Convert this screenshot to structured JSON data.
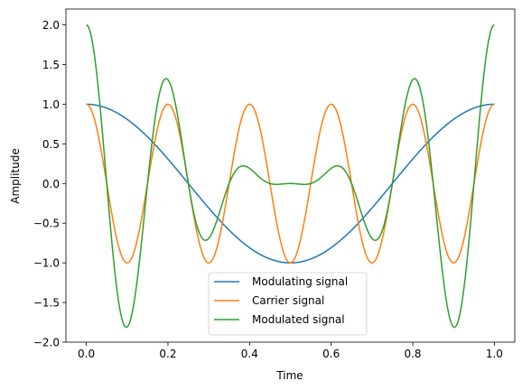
{
  "chart_data": {
    "type": "line",
    "title": "",
    "xlabel": "Time",
    "ylabel": "Amplitude",
    "xlim": [
      -0.05,
      1.05
    ],
    "ylim": [
      -2.0,
      2.2
    ],
    "x_ticks": [
      0.0,
      0.2,
      0.4,
      0.6,
      0.8,
      1.0
    ],
    "x_tick_labels": [
      "0.0",
      "0.2",
      "0.4",
      "0.6",
      "0.8",
      "1.0"
    ],
    "y_ticks": [
      -2.0,
      -1.5,
      -1.0,
      -0.5,
      0.0,
      0.5,
      1.0,
      1.5,
      2.0
    ],
    "y_tick_labels": [
      "−2.0",
      "−1.5",
      "−1.0",
      "−0.5",
      "0.0",
      "0.5",
      "1.0",
      "1.5",
      "2.0"
    ],
    "grid": false,
    "legend_position": "lower-center",
    "x_range": [
      0,
      1
    ],
    "series": [
      {
        "name": "Modulating signal",
        "color": "#1f77b4",
        "function": "cos(2*pi*1*t)",
        "sample_points": {
          "x": [
            0,
            0.25,
            0.5,
            0.75,
            1.0
          ],
          "y": [
            1.0,
            0.0,
            -1.0,
            0.0,
            1.0
          ]
        }
      },
      {
        "name": "Carrier signal",
        "color": "#ff7f0e",
        "function": "cos(2*pi*5*t)",
        "sample_points": {
          "x": [
            0,
            0.1,
            0.2,
            0.3,
            0.4,
            0.5,
            0.6,
            0.7,
            0.8,
            0.9,
            1.0
          ],
          "y": [
            1.0,
            -1.0,
            1.0,
            -1.0,
            1.0,
            -1.0,
            1.0,
            -1.0,
            1.0,
            -1.0,
            1.0
          ]
        }
      },
      {
        "name": "Modulated signal",
        "color": "#2ca02c",
        "function": "(1+cos(2*pi*1*t))*cos(2*pi*5*t)",
        "sample_points": {
          "x": [
            0,
            0.1,
            0.2,
            0.3,
            0.4,
            0.5,
            0.6,
            0.7,
            0.8,
            0.9,
            1.0
          ],
          "y": [
            2.0,
            -1.81,
            1.31,
            -0.69,
            0.19,
            0.0,
            0.19,
            -0.69,
            1.31,
            -1.81,
            2.0
          ]
        }
      }
    ]
  }
}
